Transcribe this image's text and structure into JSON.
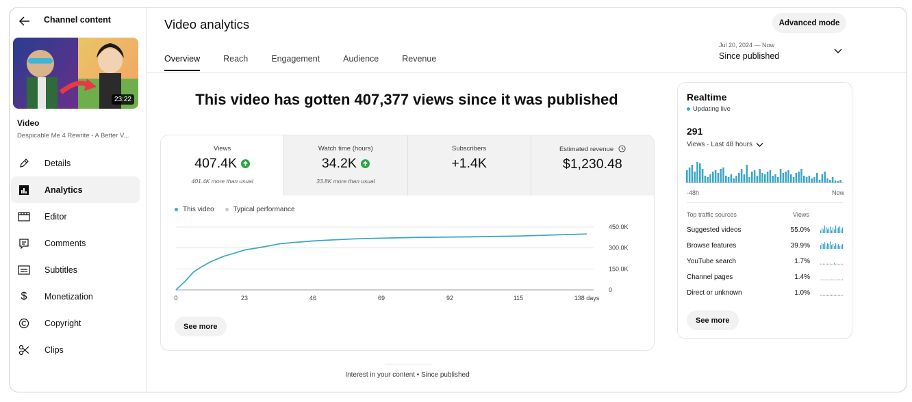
{
  "sidebar": {
    "back_label": "Channel content",
    "thumbnail_duration": "23:22",
    "video_label": "Video",
    "video_title": "Despicable Me 4 Rewrite - A Better V...",
    "items": [
      {
        "label": "Details",
        "icon": "pencil-icon",
        "active": false
      },
      {
        "label": "Analytics",
        "icon": "analytics-icon",
        "active": true
      },
      {
        "label": "Editor",
        "icon": "editor-icon",
        "active": false
      },
      {
        "label": "Comments",
        "icon": "comments-icon",
        "active": false
      },
      {
        "label": "Subtitles",
        "icon": "subtitles-icon",
        "active": false
      },
      {
        "label": "Monetization",
        "icon": "dollar-icon",
        "active": false
      },
      {
        "label": "Copyright",
        "icon": "copyright-icon",
        "active": false
      },
      {
        "label": "Clips",
        "icon": "scissors-icon",
        "active": false
      }
    ]
  },
  "header": {
    "title": "Video analytics",
    "advanced_mode": "Advanced mode",
    "tabs": [
      "Overview",
      "Reach",
      "Engagement",
      "Audience",
      "Revenue"
    ],
    "active_tab": "Overview",
    "date_range_sub": "Jul 20, 2024 — Now",
    "date_range": "Since published"
  },
  "overview": {
    "headline": "This video has gotten 407,377 views since it was published",
    "metrics": [
      {
        "label": "Views",
        "value": "407.4K",
        "sub": "401.4K more than usual",
        "trend": "up"
      },
      {
        "label": "Watch time (hours)",
        "value": "34.2K",
        "sub": "33.8K more than usual",
        "trend": "up"
      },
      {
        "label": "Subscribers",
        "value": "+1.4K",
        "sub": "",
        "trend": ""
      },
      {
        "label": "Estimated revenue",
        "value": "$1,230.48",
        "sub": "",
        "trend": "",
        "info": true
      }
    ],
    "legend": [
      "This video",
      "Typical performance"
    ],
    "see_more": "See more",
    "footer": "Interest in your content • Since published"
  },
  "chart_data": {
    "type": "line",
    "series": [
      {
        "name": "This video",
        "x": [
          0,
          3,
          6,
          9,
          12,
          16,
          20,
          23,
          30,
          35,
          40,
          46,
          55,
          60,
          69,
          80,
          92,
          100,
          115,
          125,
          138
        ],
        "values": [
          0,
          60000,
          130000,
          170000,
          205000,
          240000,
          265000,
          285000,
          310000,
          330000,
          340000,
          350000,
          360000,
          365000,
          370000,
          375000,
          378000,
          380000,
          385000,
          392000,
          400000
        ]
      }
    ],
    "x_ticks": [
      "0",
      "23",
      "46",
      "69",
      "92",
      "115",
      "138 days"
    ],
    "x_tick_values": [
      0,
      23,
      46,
      69,
      92,
      115,
      138
    ],
    "y_ticks": [
      "0",
      "150.0K",
      "300.0K",
      "450.0K"
    ],
    "y_tick_values": [
      0,
      150000,
      300000,
      450000
    ],
    "xlim": [
      0,
      138
    ],
    "ylim": [
      0,
      450000
    ],
    "grid": true
  },
  "realtime": {
    "title": "Realtime",
    "live": "Updating live",
    "count": "291",
    "range": "Views · Last 48 hours",
    "axis_start": "-48h",
    "axis_end": "Now",
    "bars": [
      18,
      22,
      26,
      16,
      30,
      28,
      20,
      10,
      8,
      12,
      16,
      18,
      14,
      20,
      22,
      10,
      8,
      12,
      6,
      10,
      14,
      20,
      12,
      26,
      8,
      16,
      18,
      10,
      20,
      14,
      12,
      16,
      18,
      10,
      12,
      8,
      20,
      14,
      16,
      18,
      12,
      8,
      14,
      16,
      20,
      10,
      8,
      10,
      6,
      8,
      14,
      4,
      12,
      16,
      6,
      4,
      8,
      3,
      2,
      4
    ],
    "traffic_head": "Top traffic sources",
    "traffic_views": "Views",
    "sources": [
      {
        "name": "Suggested videos",
        "pct": "55.0%",
        "spark": [
          3,
          5,
          4,
          8,
          6,
          4,
          5,
          7,
          3,
          6,
          4,
          8,
          5,
          6,
          7,
          4,
          6
        ]
      },
      {
        "name": "Browse features",
        "pct": "39.9%",
        "spark": [
          4,
          6,
          5,
          7,
          3,
          6,
          5,
          8,
          4,
          5,
          3,
          6,
          4,
          5,
          3,
          4,
          5
        ]
      },
      {
        "name": "YouTube search",
        "pct": "1.7%",
        "spark": [
          1,
          0,
          1,
          0,
          0,
          1,
          0,
          1,
          0,
          0,
          2,
          0,
          1,
          0,
          0,
          1,
          0
        ]
      },
      {
        "name": "Channel pages",
        "pct": "1.4%",
        "spark": [
          0,
          1,
          0,
          0,
          1,
          0,
          0,
          1,
          0,
          1,
          0,
          0,
          1,
          0,
          1,
          0,
          1
        ]
      },
      {
        "name": "Direct or unknown",
        "pct": "1.0%",
        "spark": [
          0,
          1,
          0,
          0,
          0,
          1,
          0,
          0,
          1,
          0,
          0,
          1,
          0,
          0,
          1,
          0,
          0
        ]
      }
    ],
    "see_more": "See more"
  },
  "colors": {
    "accent": "#3ea6c9",
    "typical": "#c7c7c7",
    "up_green": "#2ba640",
    "live_dot": "#3ea6c9"
  }
}
